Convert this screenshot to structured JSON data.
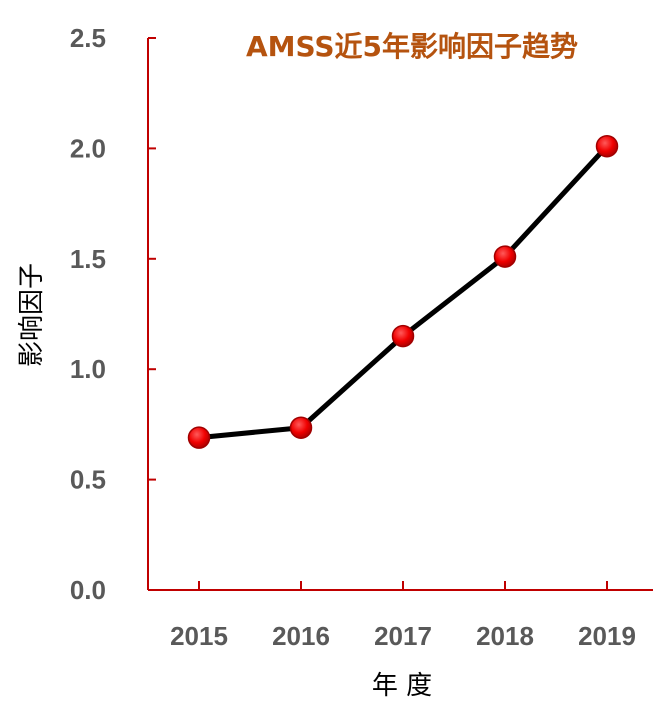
{
  "chart_data": {
    "type": "line",
    "title": "AMSS近5年影响因子趋势",
    "xlabel": "年 度",
    "ylabel": "影响因子",
    "categories": [
      "2015",
      "2016",
      "2017",
      "2018",
      "2019"
    ],
    "values": [
      0.69,
      0.735,
      1.15,
      1.51,
      2.01
    ],
    "ylim": [
      0,
      2.5
    ],
    "yticks": [
      "0.0",
      "0.5",
      "1.0",
      "1.5",
      "2.0",
      "2.5"
    ],
    "grid": false,
    "colors": {
      "axis": "#c00000",
      "line": "#000000",
      "marker": "#ff0000",
      "title": "#b5530f",
      "tick_text": "#595959"
    }
  }
}
